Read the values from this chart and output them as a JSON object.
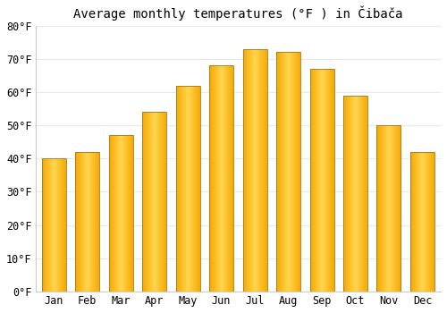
{
  "title": "Average monthly temperatures (°F ) in Čibača",
  "months": [
    "Jan",
    "Feb",
    "Mar",
    "Apr",
    "May",
    "Jun",
    "Jul",
    "Aug",
    "Sep",
    "Oct",
    "Nov",
    "Dec"
  ],
  "values": [
    40,
    42,
    47,
    54,
    62,
    68,
    73,
    72,
    67,
    59,
    50,
    42
  ],
  "ylim": [
    0,
    80
  ],
  "yticks": [
    0,
    10,
    20,
    30,
    40,
    50,
    60,
    70,
    80
  ],
  "ytick_labels": [
    "0°F",
    "10°F",
    "20°F",
    "30°F",
    "40°F",
    "50°F",
    "60°F",
    "70°F",
    "80°F"
  ],
  "bar_color_center": "#FFD54F",
  "bar_color_edge": "#F5A800",
  "bar_border_color": "#A07820",
  "background_color": "#ffffff",
  "plot_bg_color": "#ffffff",
  "grid_color": "#e8e8e8",
  "title_fontsize": 10,
  "tick_fontsize": 8.5,
  "bar_width": 0.72
}
